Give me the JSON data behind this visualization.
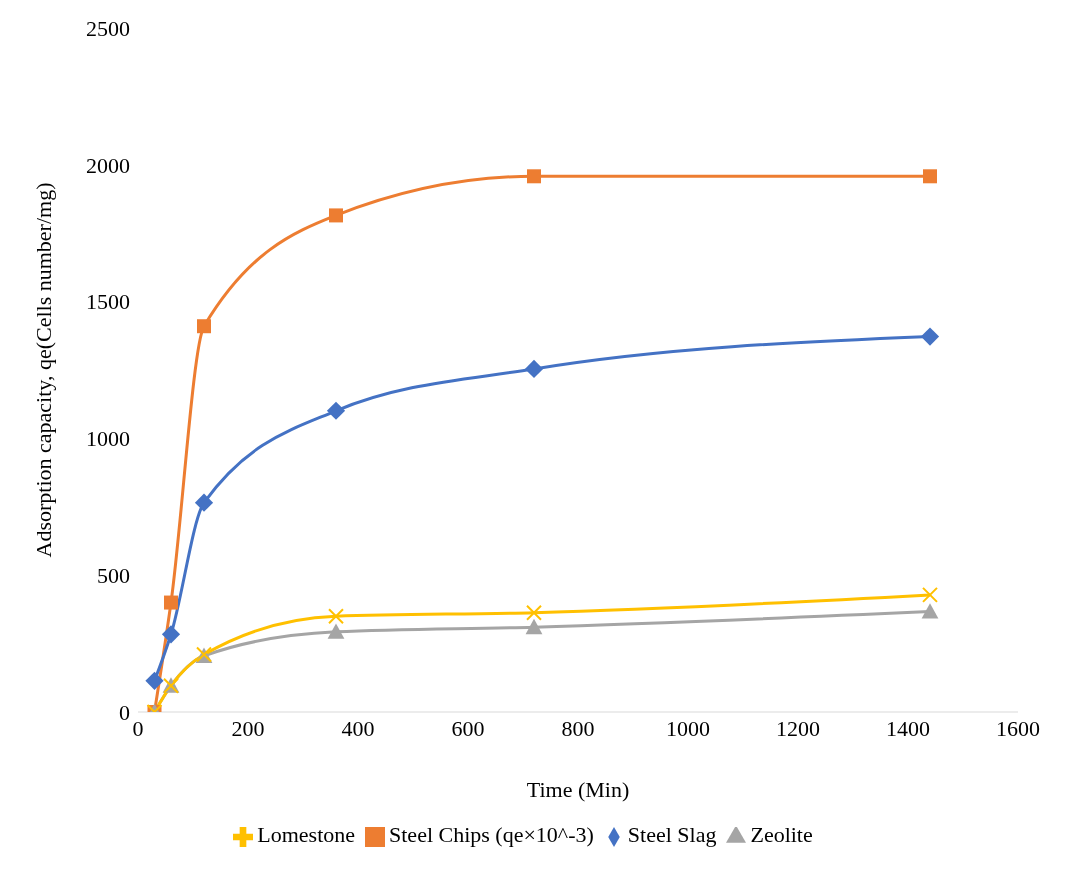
{
  "chart_data": {
    "type": "line",
    "xlabel": "Time (Min)",
    "ylabel": "Adsorption capacity, qe(Cells number/mg)",
    "x": [
      30,
      60,
      120,
      360,
      720,
      1440
    ],
    "xlim": [
      0,
      1600
    ],
    "xticks": [
      0,
      200,
      400,
      600,
      800,
      1000,
      1200,
      1400,
      1600
    ],
    "ylim": [
      0,
      2500
    ],
    "yticks": [
      0,
      500,
      1000,
      1500,
      2000,
      2500
    ],
    "grid": false,
    "legend": "bottom",
    "series": [
      {
        "name": "Steel Chips (qe×10^-3)",
        "color": "#ed7d31",
        "marker": "square",
        "values": [
          0,
          400,
          1410,
          1815,
          1958,
          1958
        ]
      },
      {
        "name": "Steel Slag",
        "color": "#4472c4",
        "marker": "diamond",
        "values": [
          114,
          284,
          765,
          1101,
          1254,
          1372
        ]
      },
      {
        "name": "Zeolite",
        "color": "#a5a5a5",
        "marker": "triangle",
        "values": [
          0,
          96,
          205,
          293,
          310,
          367
        ]
      },
      {
        "name": "Lomestone",
        "color": "#ffc000",
        "marker": "cross",
        "values": [
          0,
          96,
          210,
          350,
          363,
          428
        ]
      }
    ]
  }
}
